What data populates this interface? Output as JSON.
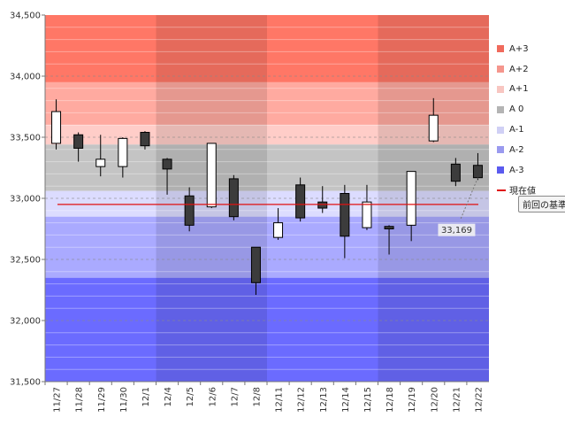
{
  "chart_data": {
    "type": "candlestick",
    "y_range": [
      31500,
      34500
    ],
    "y_ticks": [
      31500,
      32000,
      32500,
      33000,
      33500,
      34000,
      34500
    ],
    "y_tick_labels": [
      "31,500",
      "32,000",
      "32,500",
      "33,000",
      "33,500",
      "34,000",
      "34,500"
    ],
    "categories": [
      "11/27",
      "11/28",
      "11/29",
      "11/30",
      "12/1",
      "12/4",
      "12/5",
      "12/6",
      "12/7",
      "12/8",
      "12/11",
      "12/12",
      "12/13",
      "12/14",
      "12/15",
      "12/18",
      "12/19",
      "12/20",
      "12/21",
      "12/22"
    ],
    "candles": [
      {
        "date": "11/27",
        "open": 33450,
        "high": 33810,
        "low": 33400,
        "close": 33710
      },
      {
        "date": "11/28",
        "open": 33520,
        "high": 33540,
        "low": 33300,
        "close": 33410
      },
      {
        "date": "11/29",
        "open": 33260,
        "high": 33520,
        "low": 33180,
        "close": 33320
      },
      {
        "date": "11/30",
        "open": 33260,
        "high": 33500,
        "low": 33170,
        "close": 33490
      },
      {
        "date": "12/1",
        "open": 33540,
        "high": 33550,
        "low": 33400,
        "close": 33430
      },
      {
        "date": "12/4",
        "open": 33320,
        "high": 33330,
        "low": 33030,
        "close": 33240
      },
      {
        "date": "12/5",
        "open": 33020,
        "high": 33090,
        "low": 32730,
        "close": 32780
      },
      {
        "date": "12/6",
        "open": 32930,
        "high": 33450,
        "low": 32920,
        "close": 33450
      },
      {
        "date": "12/7",
        "open": 33160,
        "high": 33190,
        "low": 32820,
        "close": 32850
      },
      {
        "date": "12/8",
        "open": 32600,
        "high": 32600,
        "low": 32210,
        "close": 32310
      },
      {
        "date": "12/11",
        "open": 32680,
        "high": 32920,
        "low": 32660,
        "close": 32800
      },
      {
        "date": "12/12",
        "open": 33110,
        "high": 33170,
        "low": 32810,
        "close": 32840
      },
      {
        "date": "12/13",
        "open": 32970,
        "high": 33100,
        "low": 32880,
        "close": 32920
      },
      {
        "date": "12/14",
        "open": 33040,
        "high": 33110,
        "low": 32510,
        "close": 32690
      },
      {
        "date": "12/15",
        "open": 32760,
        "high": 33110,
        "low": 32740,
        "close": 32970
      },
      {
        "date": "12/18",
        "open": 32770,
        "high": 32780,
        "low": 32540,
        "close": 32750
      },
      {
        "date": "12/19",
        "open": 32780,
        "high": 33220,
        "low": 32650,
        "close": 33220
      },
      {
        "date": "12/20",
        "open": 33470,
        "high": 33820,
        "low": 33460,
        "close": 33680
      },
      {
        "date": "12/21",
        "open": 33280,
        "high": 33330,
        "low": 33100,
        "close": 33140
      },
      {
        "date": "12/22",
        "open": 33270,
        "high": 33370,
        "low": 33150,
        "close": 33169
      }
    ],
    "bands": [
      {
        "name": "A+3",
        "from": 33950,
        "to": 34500,
        "color": "#ff7766"
      },
      {
        "name": "A+2",
        "from": 33600,
        "to": 33950,
        "color": "#ffaaa0"
      },
      {
        "name": "A+1",
        "from": 33440,
        "to": 33600,
        "color": "#ffcdc8"
      },
      {
        "name": "A 0",
        "from": 33060,
        "to": 33440,
        "color": "#c4c4c4"
      },
      {
        "name": "A-1",
        "from": 32850,
        "to": 33060,
        "color": "#dcdcff"
      },
      {
        "name": "A-2",
        "from": 32350,
        "to": 32850,
        "color": "#aaaaff"
      },
      {
        "name": "A-3",
        "from": 31500,
        "to": 32350,
        "color": "#6b6bff"
      }
    ],
    "current_value": 32950,
    "current_value_label": "現在値",
    "current_value_color": "#e01010",
    "callout_value": 33169,
    "callout_label": "33,169",
    "callout_button": "前回の基準",
    "up_color": "#ffffff",
    "down_color": "#3c3c3c"
  },
  "legend": [
    {
      "label": "A+3",
      "color": "#f06a5c"
    },
    {
      "label": "A+2",
      "color": "#f5968d"
    },
    {
      "label": "A+1",
      "color": "#f8c6c1"
    },
    {
      "label": "A 0",
      "color": "#b4b4b4"
    },
    {
      "label": "A-1",
      "color": "#d0d0f5"
    },
    {
      "label": "A-2",
      "color": "#9a9aef"
    },
    {
      "label": "A-3",
      "color": "#5a5aef"
    },
    {
      "label": "現在値",
      "color": "#e01010",
      "type": "line"
    }
  ]
}
